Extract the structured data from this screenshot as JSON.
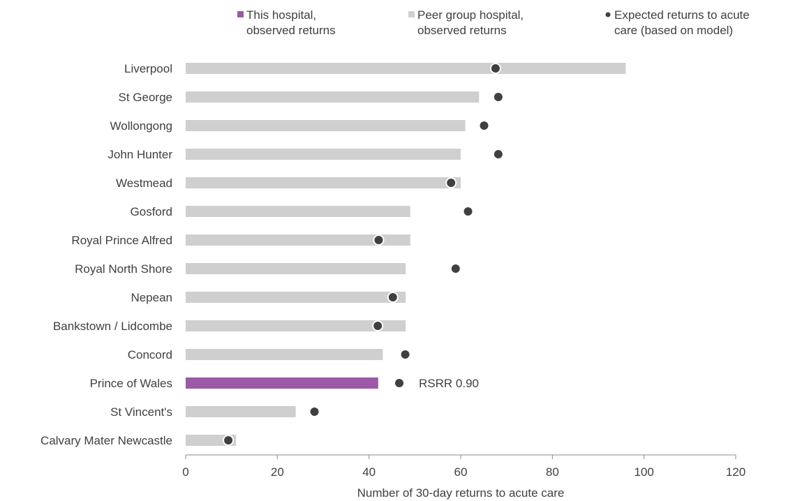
{
  "chart_data": {
    "type": "bar",
    "orientation": "horizontal",
    "title": "",
    "xlabel": "Number of 30-day returns to acute care",
    "ylabel": "",
    "xlim": [
      0,
      120
    ],
    "xticks": [
      0,
      20,
      40,
      60,
      80,
      100,
      120
    ],
    "grid": false,
    "legend_position": "top",
    "categories": [
      "Liverpool",
      "St George",
      "Wollongong",
      "John Hunter",
      "Westmead",
      "Gosford",
      "Royal Prince Alfred",
      "Royal North Shore",
      "Nepean",
      "Bankstown / Lidcombe",
      "Concord",
      "Prince of Wales",
      "St Vincent's",
      "Calvary Mater Newcastle"
    ],
    "highlight_category": "Prince of Wales",
    "series": [
      {
        "name": "Peer group hospital, observed returns",
        "kind": "bar",
        "values": [
          96,
          64,
          61,
          60,
          60,
          49,
          49,
          48,
          48,
          48,
          43,
          42,
          24,
          11
        ]
      },
      {
        "name": "Expected returns to acute care (based on model)",
        "kind": "marker",
        "values": [
          67.6,
          68.2,
          65.1,
          68.2,
          57.9,
          61.6,
          42.1,
          58.9,
          45.2,
          41.9,
          47.9,
          46.6,
          28.1,
          9.3
        ]
      }
    ],
    "legend": [
      {
        "line1": "This hospital,",
        "line2": "observed returns",
        "color": "#9b59a6",
        "marker": "square"
      },
      {
        "line1": "Peer group hospital,",
        "line2": "observed returns",
        "color": "#cfcfcf",
        "marker": "square"
      },
      {
        "line1": "Expected returns to acute",
        "line2": "care (based on model)",
        "color": "#404040",
        "marker": "circle"
      }
    ],
    "annotation": {
      "category": "Prince of Wales",
      "text": "RSRR 0.90"
    },
    "colors": {
      "highlight": "#9b59a6",
      "peer": "#cfcfcf",
      "expected": "#404040",
      "axis": "#8c8c8c",
      "text": "#404040"
    }
  }
}
